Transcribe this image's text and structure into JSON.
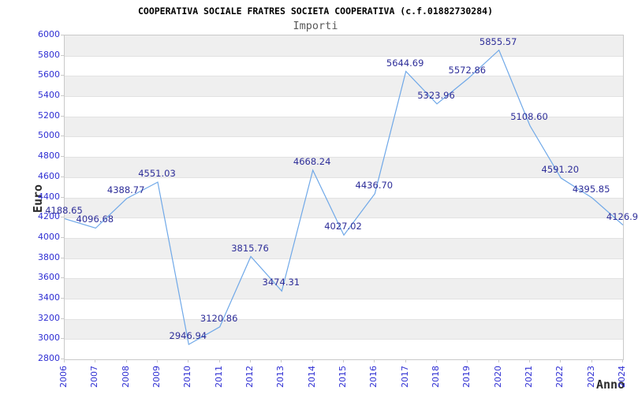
{
  "title": "COOPERATIVA SOCIALE FRATRES SOCIETA COOPERATIVA (c.f.01882730284)",
  "subtitle": "Importi",
  "chart_data": {
    "type": "line",
    "title": "COOPERATIVA SOCIALE FRATRES SOCIETA COOPERATIVA (c.f.01882730284)",
    "subtitle": "Importi",
    "xlabel": "Anno",
    "ylabel": "Euro",
    "x": [
      2006,
      2007,
      2008,
      2009,
      2010,
      2011,
      2012,
      2013,
      2014,
      2015,
      2016,
      2017,
      2018,
      2019,
      2020,
      2021,
      2022,
      2023,
      2024
    ],
    "values": [
      4188.65,
      4096.68,
      4388.77,
      4551.03,
      2946.94,
      3120.86,
      3815.76,
      3474.31,
      4668.24,
      4027.02,
      4436.7,
      5644.69,
      5323.96,
      5572.86,
      5855.57,
      5108.6,
      4591.2,
      4395.85,
      4126.9
    ],
    "point_labels": [
      "4188.65",
      "4096.68",
      "4388.77",
      "4551.03",
      "2946.94",
      "3120.86",
      "3815.76",
      "3474.31",
      "4668.24",
      "4027.02",
      "4436.70",
      "5644.69",
      "5323.96",
      "5572.86",
      "5855.57",
      "5108.60",
      "4591.20",
      "4395.85",
      "4126.9"
    ],
    "ylim": [
      2800,
      6000
    ],
    "ytick_step": 200,
    "grid": "horizontal-bands-alternating",
    "legend": "none",
    "colors": {
      "line": "#6fa8e8",
      "tick_label": "#2f2fd3",
      "data_label": "#2e2e99",
      "band": "#efefef",
      "gridline": "#e2e2e2",
      "plot_border": "#c9c9c9",
      "title": "#000000",
      "subtitle": "#595959",
      "axis_title": "#2b2b2b",
      "background": "#ffffff"
    }
  }
}
